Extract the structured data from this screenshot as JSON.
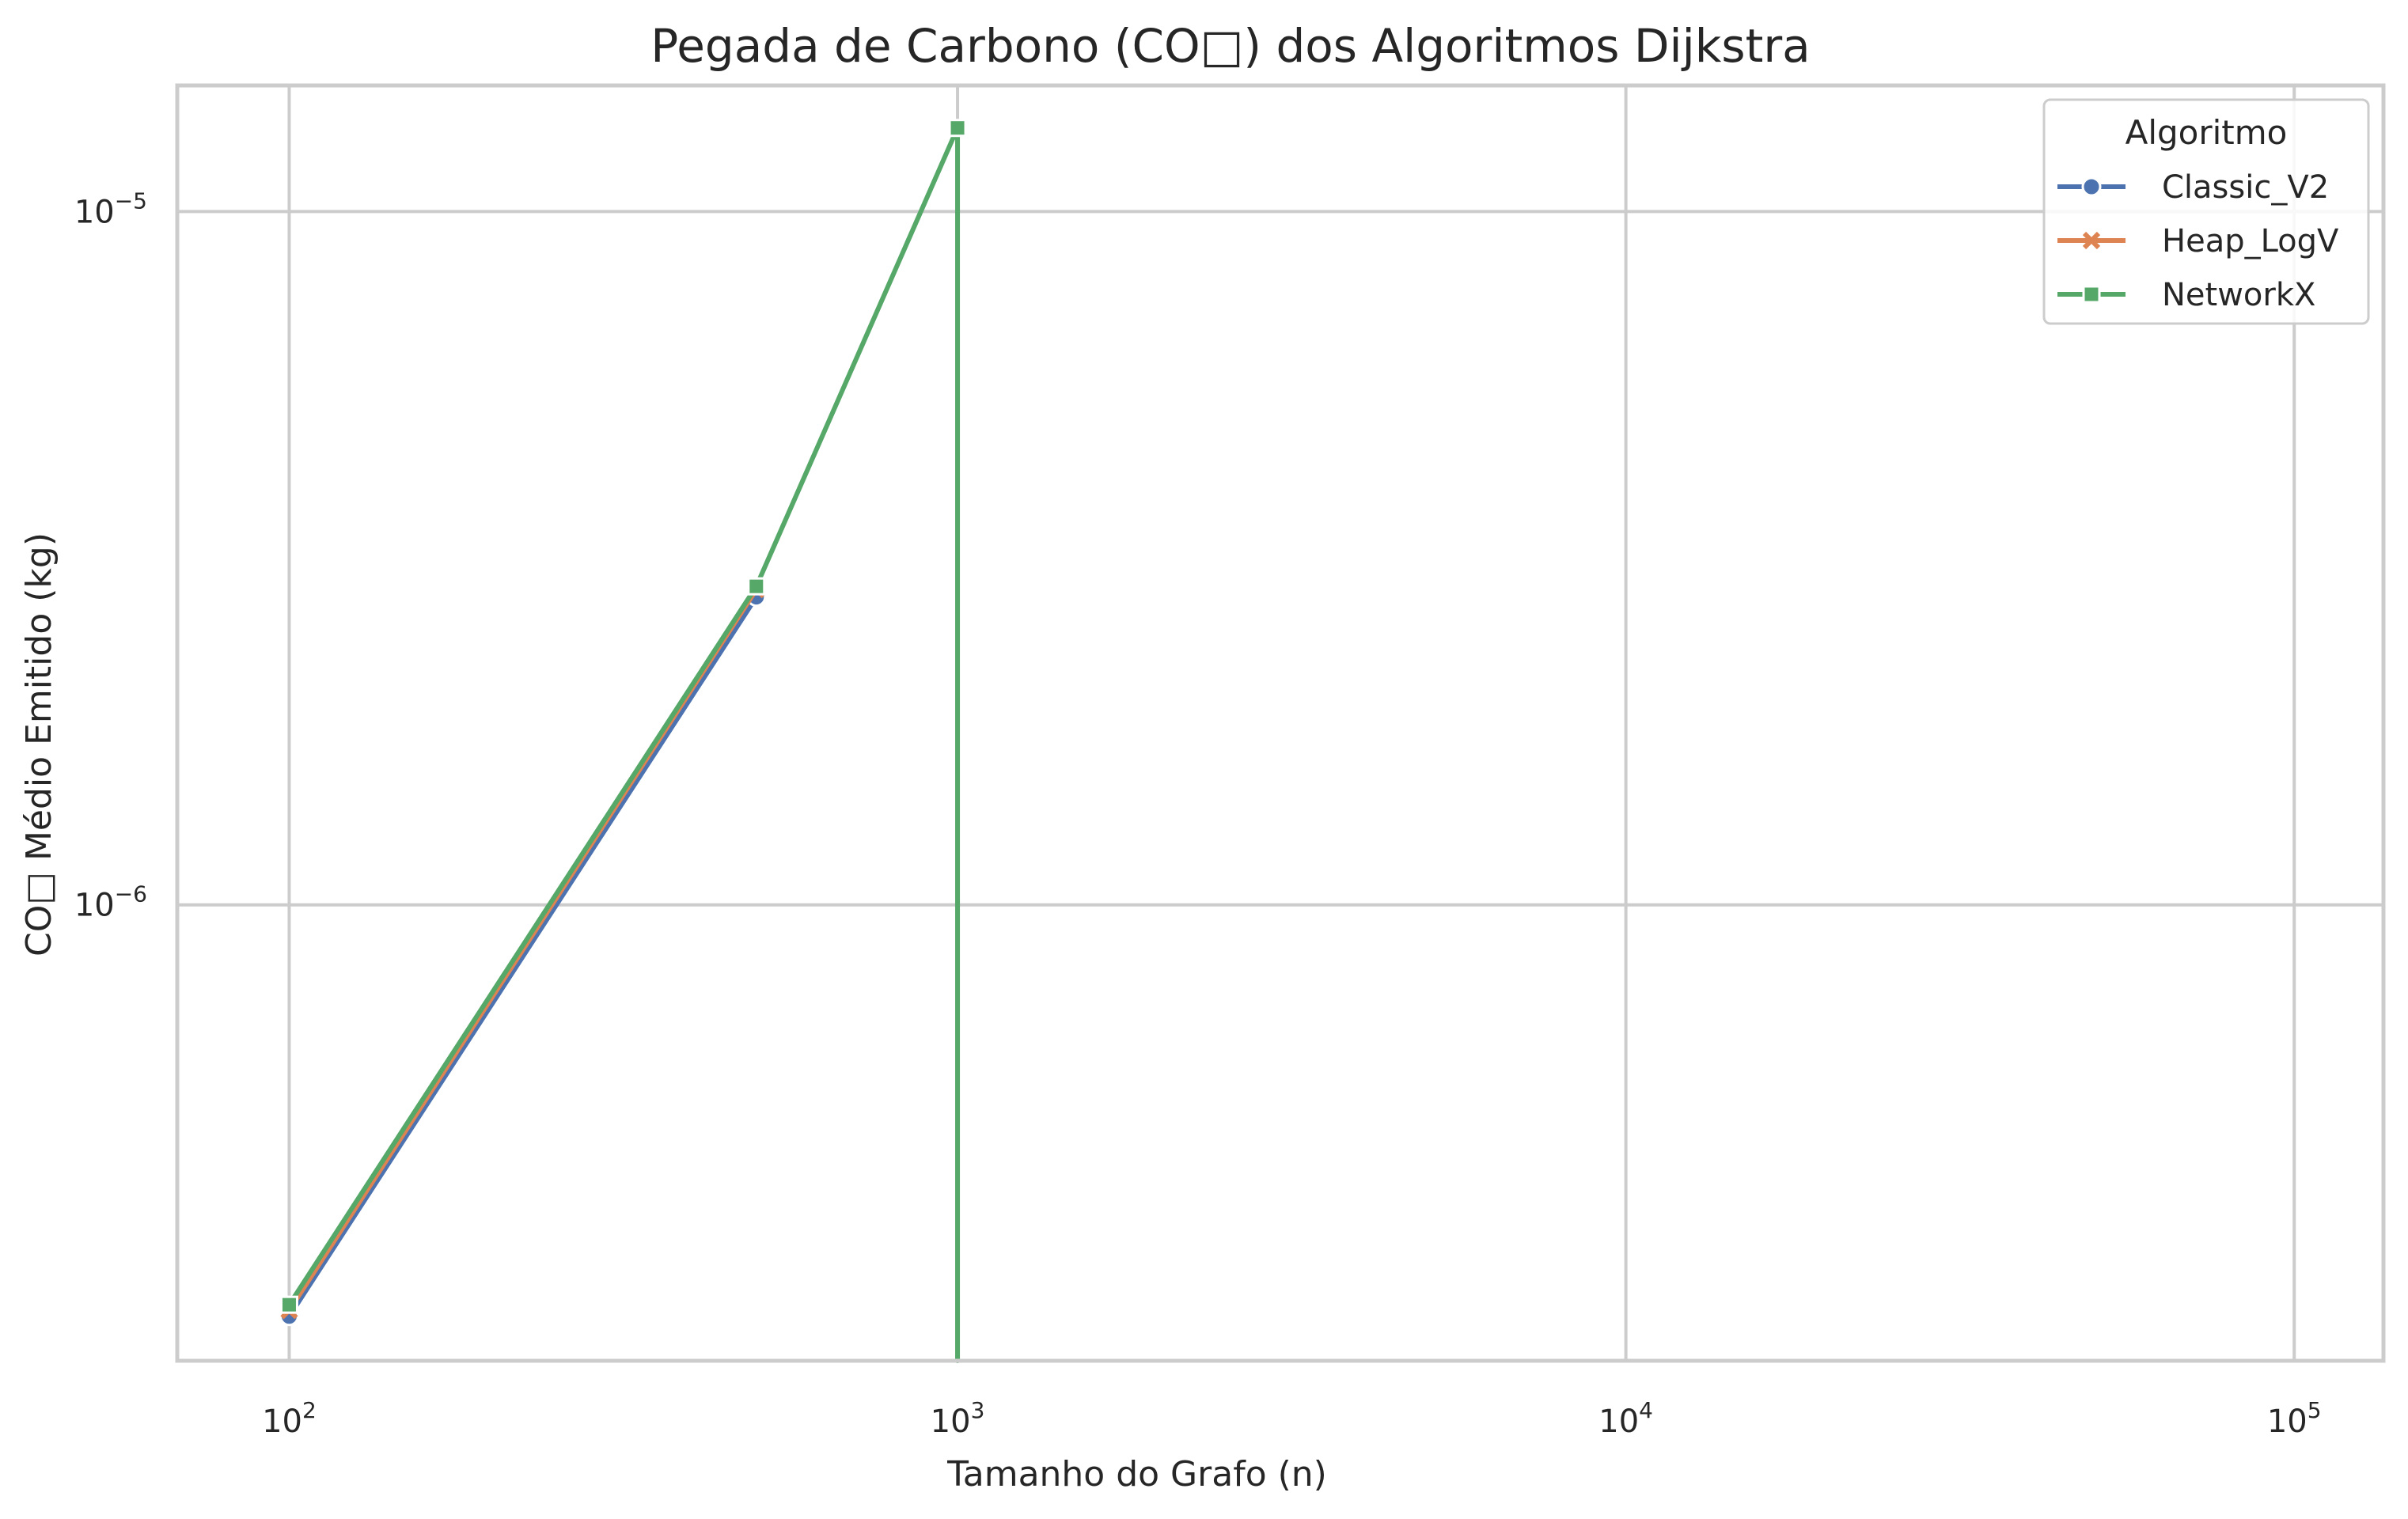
{
  "chart_data": {
    "type": "line",
    "title": "Pegada de Carbono (CO□) dos Algoritmos Dijkstra",
    "xlabel": "Tamanho do Grafo (n)",
    "ylabel": "CO□ Médio Emitido (kg)",
    "xscale": "log",
    "yscale": "log",
    "xlim": [
      68,
      136000
    ],
    "ylim": [
      2.2e-07,
      1.52e-05
    ],
    "x_ticks": [
      {
        "value": 100,
        "base": "10",
        "exp": "2"
      },
      {
        "value": 1000,
        "base": "10",
        "exp": "3"
      },
      {
        "value": 10000,
        "base": "10",
        "exp": "4"
      },
      {
        "value": 100000,
        "base": "10",
        "exp": "5"
      }
    ],
    "y_ticks": [
      {
        "value": 1e-06,
        "base": "10",
        "exp": "−6"
      },
      {
        "value": 1e-05,
        "base": "10",
        "exp": "−5"
      }
    ],
    "grid": true,
    "legend": {
      "title": "Algoritmo",
      "position": "top-right"
    },
    "series": [
      {
        "name": "Classic_V2",
        "color": "#4c72b0",
        "marker": "circle",
        "points": [
          [
            100,
            2.55e-07
          ],
          [
            500,
            2.78e-06
          ]
        ]
      },
      {
        "name": "Heap_LogV",
        "color": "#dd8452",
        "marker": "x",
        "points": [
          [
            100,
            2.6e-07
          ],
          [
            500,
            2.85e-06
          ]
        ]
      },
      {
        "name": "NetworkX",
        "color": "#55a868",
        "marker": "square",
        "points": [
          [
            100,
            2.65e-07
          ],
          [
            500,
            2.88e-06
          ],
          [
            1000,
            1.32e-05
          ],
          [
            1000,
            2.2e-07
          ]
        ]
      }
    ]
  }
}
